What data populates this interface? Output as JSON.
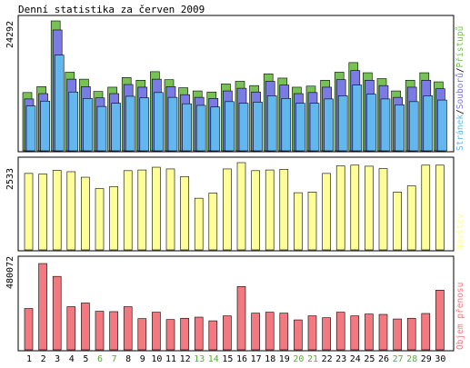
{
  "title": "Denní statistika za červen 2009",
  "colors": {
    "background": "#ffffff",
    "border": "#000000",
    "hits": "#77c155",
    "files": "#7b7be6",
    "pages": "#62b8ee",
    "visits": "#fefe99",
    "kbytes": "#f2797f",
    "weekday_label": "#000000",
    "weekend_label": "#55b030"
  },
  "chart_data": [
    {
      "type": "bar",
      "panel": "top",
      "ymax_label": "24292",
      "ymax": 24292,
      "side_label_parts": [
        {
          "text": "Stránek",
          "color_key": "pages"
        },
        {
          "text": "/",
          "color_key": "separator"
        },
        {
          "text": "Souborů",
          "color_key": "files"
        },
        {
          "text": "/",
          "color_key": "separator"
        },
        {
          "text": "Přístupů",
          "color_key": "hits"
        }
      ],
      "categories": [
        "1",
        "2",
        "3",
        "4",
        "5",
        "6",
        "7",
        "8",
        "9",
        "10",
        "11",
        "12",
        "13",
        "14",
        "15",
        "16",
        "17",
        "18",
        "19",
        "20",
        "21",
        "22",
        "23",
        "24",
        "25",
        "26",
        "27",
        "28",
        "29",
        "30"
      ],
      "weekend_days": [
        "6",
        "7",
        "13",
        "14",
        "20",
        "21",
        "27",
        "28"
      ],
      "series": [
        {
          "name": "Přístupů",
          "color_key": "hits",
          "values": [
            10900,
            12000,
            24292,
            14700,
            13400,
            11100,
            11900,
            13700,
            13200,
            14800,
            13300,
            11800,
            11200,
            11000,
            12500,
            13000,
            12200,
            14400,
            13600,
            11900,
            12100,
            13200,
            14700,
            16500,
            14600,
            13500,
            11200,
            13200,
            14600,
            12900
          ]
        },
        {
          "name": "Souborů",
          "color_key": "files",
          "values": [
            9700,
            10700,
            22600,
            13400,
            12000,
            9900,
            10700,
            12400,
            11900,
            13400,
            12000,
            10500,
            10000,
            9800,
            11200,
            11700,
            11000,
            13000,
            12300,
            10700,
            10900,
            11900,
            13300,
            15000,
            13200,
            12200,
            10000,
            11900,
            13200,
            11600
          ]
        },
        {
          "name": "Stránek",
          "color_key": "pages",
          "values": [
            8400,
            9300,
            17900,
            11000,
            9800,
            8300,
            8900,
            10200,
            9900,
            10900,
            10000,
            8800,
            8500,
            8200,
            9200,
            8900,
            9100,
            10300,
            9800,
            8900,
            8900,
            9700,
            10300,
            12300,
            10600,
            9700,
            8600,
            9200,
            10300,
            9500
          ]
        }
      ]
    },
    {
      "type": "bar",
      "panel": "middle",
      "ymax_label": "2533",
      "ymax": 2533,
      "side_label": "Návštěv",
      "categories": [
        "1",
        "2",
        "3",
        "4",
        "5",
        "6",
        "7",
        "8",
        "9",
        "10",
        "11",
        "12",
        "13",
        "14",
        "15",
        "16",
        "17",
        "18",
        "19",
        "20",
        "21",
        "22",
        "23",
        "24",
        "25",
        "26",
        "27",
        "28",
        "29",
        "30"
      ],
      "series": [
        {
          "name": "Návštěv",
          "color_key": "visits",
          "values": [
            2220,
            2200,
            2310,
            2270,
            2110,
            1780,
            1840,
            2300,
            2320,
            2400,
            2350,
            2130,
            1500,
            1650,
            2350,
            2533,
            2300,
            2320,
            2340,
            1660,
            1680,
            2220,
            2440,
            2460,
            2430,
            2360,
            1680,
            1860,
            2460,
            2460
          ]
        }
      ]
    },
    {
      "type": "bar",
      "panel": "bottom",
      "ymax_label": "480072",
      "ymax": 480072,
      "side_label": "Objem přenosu",
      "categories": [
        "1",
        "2",
        "3",
        "4",
        "5",
        "6",
        "7",
        "8",
        "9",
        "10",
        "11",
        "12",
        "13",
        "14",
        "15",
        "16",
        "17",
        "18",
        "19",
        "20",
        "21",
        "22",
        "23",
        "24",
        "25",
        "26",
        "27",
        "28",
        "29",
        "30"
      ],
      "series": [
        {
          "name": "Objem přenosu",
          "color_key": "kbytes",
          "values": [
            225000,
            470000,
            400000,
            235000,
            255000,
            210000,
            208000,
            235000,
            170000,
            205000,
            165000,
            172000,
            178000,
            158000,
            185000,
            345000,
            200000,
            205000,
            200000,
            163000,
            185000,
            175000,
            205000,
            185000,
            195000,
            193000,
            168000,
            172000,
            198000,
            325000
          ]
        }
      ]
    }
  ]
}
